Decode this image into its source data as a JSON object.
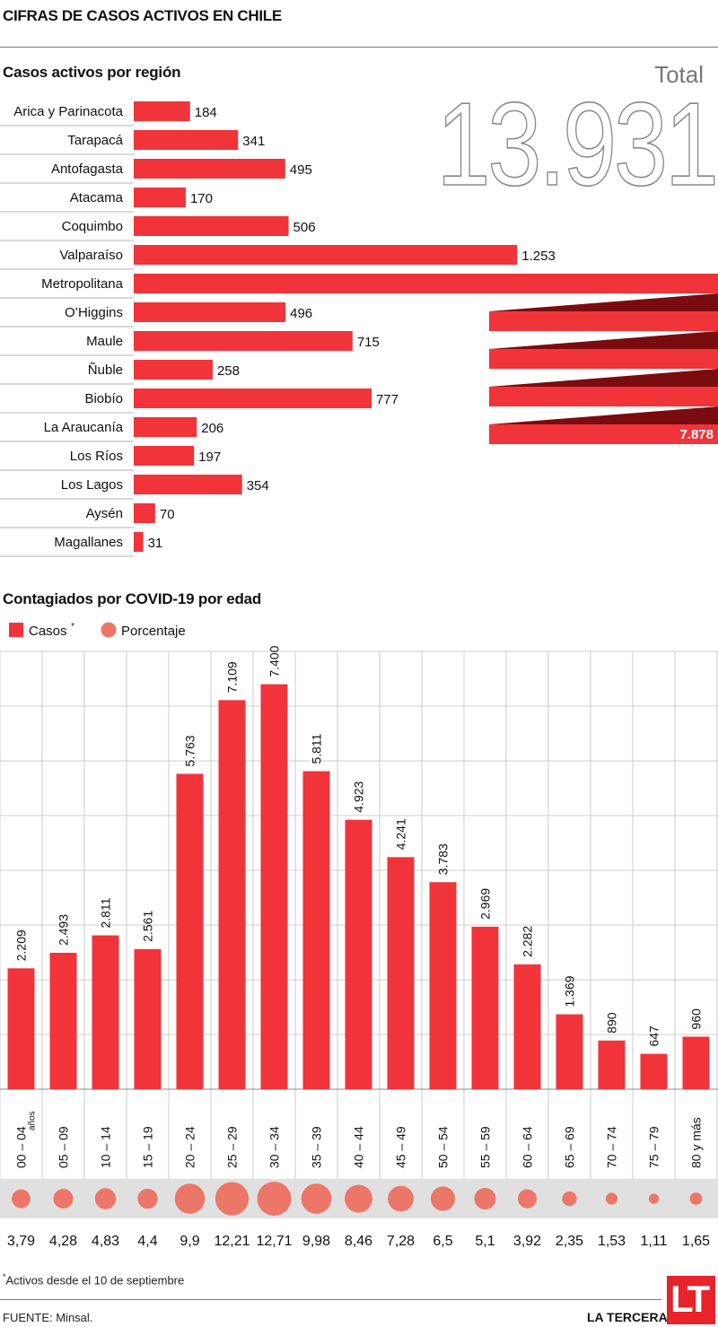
{
  "page_title": "CIFRAS DE CASOS ACTIVOS EN CHILE",
  "total_label": "Total",
  "total_value": "13.931",
  "colors": {
    "bar": "#f0343a",
    "bar_dark": "#7a0c0f",
    "circle": "#ec7668",
    "band": "#e0e0e0",
    "grid": "#bfbfbf"
  },
  "chart_data": [
    {
      "type": "bar",
      "title": "Casos activos por región",
      "orientation": "horizontal",
      "categories": [
        "Arica y Parinacota",
        "Tarapacá",
        "Antofagasta",
        "Atacama",
        "Coquimbo",
        "Valparaíso",
        "Metropolitana",
        "O’Higgins",
        "Maule",
        "Ñuble",
        "Biobío",
        "La Araucanía",
        "Los Ríos",
        "Los Lagos",
        "Aysén",
        "Magallanes"
      ],
      "values": [
        184,
        341,
        495,
        170,
        506,
        1253,
        7878,
        496,
        715,
        258,
        777,
        206,
        197,
        354,
        70,
        31
      ],
      "value_labels": [
        "184",
        "341",
        "495",
        "170",
        "506",
        "1.253",
        "7.878",
        "496",
        "715",
        "258",
        "777",
        "206",
        "197",
        "354",
        "70",
        "31"
      ],
      "xlabel": "",
      "ylabel": ""
    },
    {
      "type": "bar",
      "title": "Contagiados por COVID-19 por edad",
      "categories": [
        "00 – 04",
        "05 – 09",
        "10 – 14",
        "15 – 19",
        "20 – 24",
        "25 – 29",
        "30 – 34",
        "35 – 39",
        "40 – 44",
        "45 – 49",
        "50 – 54",
        "55 – 59",
        "60 – 64",
        "65 – 69",
        "70 – 74",
        "75 – 79",
        "80 y más"
      ],
      "first_category_suffix": "años",
      "series": [
        {
          "name": "Casos",
          "values": [
            2209,
            2493,
            2811,
            2561,
            5763,
            7109,
            7400,
            5811,
            4923,
            4241,
            3783,
            2969,
            2282,
            1369,
            890,
            647,
            960
          ],
          "value_labels": [
            "2.209",
            "2.493",
            "2.811",
            "2.561",
            "5.763",
            "7.109",
            "7.400",
            "5.811",
            "4.923",
            "4.241",
            "3.783",
            "2.969",
            "2.282",
            "1.369",
            "890",
            "647",
            "960"
          ]
        },
        {
          "name": "Porcentaje",
          "values": [
            3.79,
            4.28,
            4.83,
            4.4,
            9.9,
            12.21,
            12.71,
            9.98,
            8.46,
            7.28,
            6.5,
            5.1,
            3.92,
            2.35,
            1.53,
            1.11,
            1.65
          ],
          "value_labels": [
            "3,79",
            "4,28",
            "4,83",
            "4,4",
            "9,9",
            "12,21",
            "12,71",
            "9,98",
            "8,46",
            "7,28",
            "6,5",
            "5,1",
            "3,92",
            "2,35",
            "1,53",
            "1,11",
            "1,65"
          ]
        }
      ],
      "legend": [
        "Casos",
        "Porcentaje"
      ],
      "legend_asterisk": "*",
      "ylim": [
        0,
        8000
      ],
      "grid": true,
      "xlabel": "",
      "ylabel": ""
    }
  ],
  "footnote": "Activos desde el 10 de septiembre",
  "footnote_marker": "*",
  "source": "FUENTE: Minsal.",
  "brand": "LA TERCERA",
  "logo": "LT"
}
